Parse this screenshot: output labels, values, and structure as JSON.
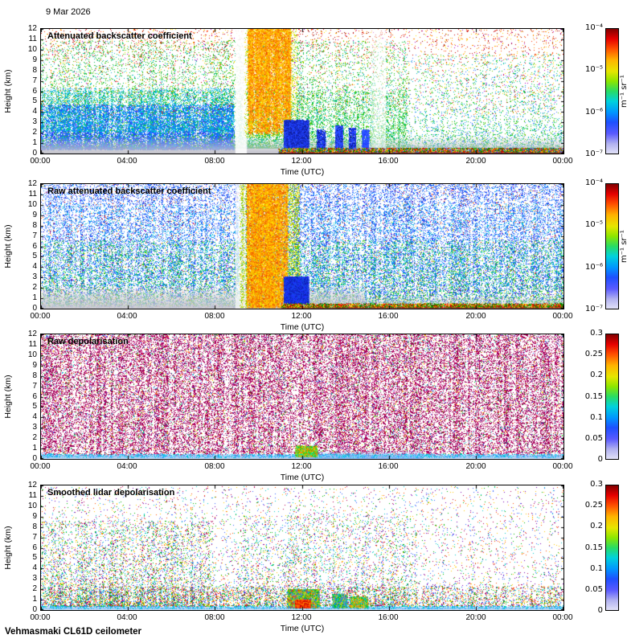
{
  "header": {
    "date": "9 Mar 2026"
  },
  "footer": {
    "station": "Vehmasmaki CL61D ceilometer"
  },
  "chart_data": {
    "type": "heatmap",
    "x_axis": {
      "label": "Time (UTC)",
      "tick_labels": [
        "00:00",
        "04:00",
        "08:00",
        "12:00",
        "16:00",
        "20:00",
        "00:00"
      ],
      "range_hours": [
        0,
        24
      ]
    },
    "y_axis": {
      "label": "Height (km)",
      "ticks": [
        0,
        1,
        2,
        3,
        4,
        5,
        6,
        7,
        8,
        9,
        10,
        11,
        12
      ],
      "range_km": [
        0,
        12
      ]
    },
    "colormap_stops": [
      [
        0,
        "#e1e1f7"
      ],
      [
        0.08,
        "#b0b0f0"
      ],
      [
        0.16,
        "#5a5aff"
      ],
      [
        0.25,
        "#1e50ff"
      ],
      [
        0.33,
        "#0096ff"
      ],
      [
        0.42,
        "#00d2dc"
      ],
      [
        0.5,
        "#28dc64"
      ],
      [
        0.58,
        "#8ce600"
      ],
      [
        0.66,
        "#e6e600"
      ],
      [
        0.75,
        "#ffb400"
      ],
      [
        0.84,
        "#ff5000"
      ],
      [
        0.92,
        "#e60000"
      ],
      [
        1,
        "#820000"
      ]
    ],
    "panels": [
      {
        "title": "Attenuated backscatter coefficient",
        "colorbar": {
          "scale": "log",
          "min": "1e-7",
          "max": "1e-4",
          "tick_labels": [
            "10⁻⁴",
            "10⁻⁵",
            "10⁻⁶",
            "10⁻⁷"
          ],
          "unit": "m⁻¹ sr⁻¹"
        },
        "layers": [
          {
            "k": "sp",
            "x0": 0,
            "x1": 0.7,
            "h0": 0.4,
            "h1": 10.8,
            "c": 14000,
            "s": 1,
            "p": 2.0,
            "cols": [
              "#28b428",
              "#19c819",
              "#00b450",
              "#46c800",
              "#00c89b",
              "#14b4d2",
              "#50c814"
            ]
          },
          {
            "k": "sp",
            "x0": 0,
            "x1": 0.7,
            "h0": 0.4,
            "h1": 6,
            "c": 8000,
            "s": 1,
            "p": 1.4,
            "cols": [
              "#19c819",
              "#00c864",
              "#64c800",
              "#00b4b4"
            ]
          },
          {
            "k": "sp",
            "x0": 0,
            "x1": 0.37,
            "h0": 0.3,
            "h1": 4.6,
            "c": 13000,
            "s": 1,
            "p": 1.6,
            "cols": [
              "#1e3cff",
              "#2850ff",
              "#3c64ff",
              "#0082ff",
              "#4646dc",
              "#00a0ff"
            ]
          },
          {
            "k": "sp",
            "x0": 0,
            "x1": 0.37,
            "h0": 2,
            "h1": 6.2,
            "c": 4200,
            "s": 1,
            "p": 1.3,
            "cols": [
              "#00aadc",
              "#00c8c8",
              "#19b4ff"
            ]
          },
          {
            "k": "sp",
            "x0": 0.7,
            "x1": 1,
            "h0": 0.4,
            "h1": 9.5,
            "c": 4200,
            "s": 1,
            "p": 2.4,
            "cols": [
              "#19c819",
              "#00c878",
              "#64c800",
              "#00b4d2",
              "#3c78ff"
            ]
          },
          {
            "k": "sp",
            "x0": 0,
            "x1": 1,
            "h0": 3.5,
            "h1": 12,
            "c": 2600,
            "s": 1,
            "p": 0.9,
            "cols": [
              "#ff9600",
              "#ffc800",
              "#ff5a00",
              "#d20000",
              "#ffe600",
              "#b400b4"
            ]
          },
          {
            "k": "sp",
            "x0": 0,
            "x1": 1,
            "h0": 9,
            "h1": 12,
            "c": 900,
            "s": 1,
            "p": 0.8,
            "cols": [
              "#c80000",
              "#ff3200",
              "#960000",
              "#ff7800"
            ]
          },
          {
            "k": "vgrad",
            "x0": 0,
            "x1": 1,
            "h0": 0,
            "h1": 1.7,
            "stops": [
              [
                0,
                "rgba(205,205,212,0)"
              ],
              [
                0.5,
                "rgba(200,200,208,0.5)"
              ],
              [
                1,
                "rgba(190,190,200,0.95)"
              ]
            ]
          },
          {
            "k": "fill",
            "x0": 0.372,
            "x1": 0.394,
            "h0": 0,
            "h1": 12,
            "color": "#ffffff",
            "a": 0.88
          },
          {
            "k": "sp",
            "x0": 0.39,
            "x1": 0.49,
            "h0": 1.5,
            "h1": 12,
            "c": 2500,
            "s": 1,
            "p": 1,
            "cols": [
              "#d2dc00",
              "#96d200",
              "#ffe600"
            ]
          },
          {
            "k": "sp",
            "x0": 0.396,
            "x1": 0.478,
            "h0": 1.8,
            "h1": 12,
            "c": 9000,
            "s": 1.2,
            "p": 0.85,
            "cols": [
              "#ff9600",
              "#ffb400",
              "#ffd200",
              "#ff7800",
              "#ffe100",
              "#f05000"
            ]
          },
          {
            "k": "sp",
            "x0": 0.465,
            "x1": 0.512,
            "h0": 0.5,
            "h1": 3.1,
            "c": 7000,
            "s": 1.2,
            "p": 1.1,
            "cols": [
              "#1428c8",
              "#1e3cff",
              "#2850ff",
              "#0f1e96"
            ]
          },
          {
            "k": "sp",
            "x0": 0.528,
            "x1": 0.545,
            "h0": 0.3,
            "h1": 2.2,
            "c": 900,
            "s": 1,
            "p": 1.2,
            "cols": [
              "#1e3cff",
              "#2850ff",
              "#0f1e96"
            ]
          },
          {
            "k": "sp",
            "x0": 0.563,
            "x1": 0.578,
            "h0": 0.3,
            "h1": 2.6,
            "c": 1500,
            "s": 1,
            "p": 1.2,
            "cols": [
              "#1e3cff",
              "#2850ff",
              "#0f1e96",
              "#3c64ff"
            ]
          },
          {
            "k": "sp",
            "x0": 0.59,
            "x1": 0.603,
            "h0": 0.3,
            "h1": 2.4,
            "c": 1300,
            "s": 1,
            "p": 1.2,
            "cols": [
              "#1e3cff",
              "#2850ff",
              "#0f1e96"
            ]
          },
          {
            "k": "sp",
            "x0": 0.615,
            "x1": 0.628,
            "h0": 0.3,
            "h1": 2.2,
            "c": 1100,
            "s": 1,
            "p": 1.2,
            "cols": [
              "#1e3cff",
              "#2850ff",
              "#3c64ff"
            ]
          },
          {
            "k": "fill",
            "x0": 0.632,
            "x1": 0.66,
            "h0": 0.5,
            "h1": 12,
            "color": "#ffffff",
            "a": 0.5
          },
          {
            "k": "sp",
            "x0": 0.455,
            "x1": 1,
            "h0": 0,
            "h1": 0.45,
            "c": 5200,
            "s": 1.1,
            "p": 1.6,
            "cols": [
              "#c80000",
              "#ff3c00",
              "#00b400",
              "#ffd200",
              "#007800",
              "#3264ff"
            ]
          },
          {
            "k": "fill",
            "x0": 0.455,
            "x1": 1,
            "h0": 0,
            "h1": 0.1,
            "color": "#821414",
            "a": 0.7
          }
        ]
      },
      {
        "title": "Raw attenuated backscatter coefficient",
        "colorbar": {
          "scale": "log",
          "min": "1e-7",
          "max": "1e-4",
          "tick_labels": [
            "10⁻⁴",
            "10⁻⁵",
            "10⁻⁶",
            "10⁻⁷"
          ],
          "unit": "m⁻¹ sr⁻¹"
        },
        "layers": [
          {
            "k": "sp",
            "x0": 0,
            "x1": 1,
            "h0": 0,
            "h1": 12,
            "c": 34000,
            "s": 1,
            "p": 1,
            "cols": [
              "#2346ff",
              "#1e5aff",
              "#2d6eff",
              "#4150e6",
              "#0a82ff",
              "#19aaff",
              "#3c3cd2"
            ]
          },
          {
            "k": "sp",
            "x0": 0,
            "x1": 1,
            "h0": 0.2,
            "h1": 6.5,
            "c": 10000,
            "s": 1,
            "p": 1.4,
            "cols": [
              "#00c85a",
              "#23c823",
              "#00b48c",
              "#55c800"
            ]
          },
          {
            "k": "sp",
            "x0": 0,
            "x1": 1,
            "h0": 2,
            "h1": 10,
            "c": 5000,
            "s": 1,
            "p": 1,
            "cols": [
              "#00c8d2",
              "#19b4e6"
            ]
          },
          {
            "k": "sp",
            "x0": 0,
            "x1": 1,
            "h0": 0,
            "h1": 12,
            "c": 2200,
            "s": 1,
            "p": 1,
            "cols": [
              "#ff8c00",
              "#d20000",
              "#ffd200",
              "#b400b4",
              "#ff4600"
            ]
          },
          {
            "k": "vgrad",
            "x0": 0,
            "x1": 0.62,
            "h0": 0,
            "h1": 2.3,
            "stops": [
              [
                0,
                "rgba(205,205,210,0)"
              ],
              [
                0.5,
                "rgba(203,203,208,0.55)"
              ],
              [
                1,
                "rgba(198,198,205,0.92)"
              ]
            ]
          },
          {
            "k": "vgrad",
            "x0": 0.62,
            "x1": 1,
            "h0": 0,
            "h1": 1.3,
            "stops": [
              [
                0,
                "rgba(205,205,210,0)"
              ],
              [
                1,
                "rgba(200,200,206,0.8)"
              ]
            ]
          },
          {
            "k": "fill",
            "x0": 0.372,
            "x1": 0.392,
            "h0": 0,
            "h1": 12,
            "color": "#ffffff",
            "a": 0.7
          },
          {
            "k": "sp",
            "x0": 0.38,
            "x1": 0.495,
            "h0": 0,
            "h1": 12,
            "c": 5000,
            "s": 1,
            "p": 1,
            "cols": [
              "#c8d200",
              "#96d200",
              "#ffe600",
              "#64c800"
            ]
          },
          {
            "k": "sp",
            "x0": 0.394,
            "x1": 0.472,
            "h0": 0,
            "h1": 12,
            "c": 13000,
            "s": 1.25,
            "p": 1,
            "cols": [
              "#ff9600",
              "#ffb400",
              "#ffd200",
              "#ff6e00",
              "#ffe600",
              "#e65000"
            ]
          },
          {
            "k": "sp",
            "x0": 0.465,
            "x1": 0.512,
            "h0": 0.4,
            "h1": 3,
            "c": 6500,
            "s": 1.2,
            "p": 1.1,
            "cols": [
              "#0f1eb4",
              "#1e32ff",
              "#1446e6"
            ]
          },
          {
            "k": "sp",
            "x0": 0.46,
            "x1": 1,
            "h0": 0,
            "h1": 0.4,
            "c": 4200,
            "s": 1.1,
            "p": 1.5,
            "cols": [
              "#c80000",
              "#ff3c00",
              "#00b400",
              "#ffd200",
              "#007800"
            ]
          },
          {
            "k": "fill",
            "x0": 0.46,
            "x1": 1,
            "h0": 0,
            "h1": 0.1,
            "color": "#781414",
            "a": 0.6
          }
        ]
      },
      {
        "title": "Raw depolarisation",
        "colorbar": {
          "scale": "linear",
          "min": 0,
          "max": 0.3,
          "tick_labels": [
            "0.3",
            "0.25",
            "0.2",
            "0.15",
            "0.1",
            "0.05",
            "0"
          ]
        },
        "layers": [
          {
            "k": "sp",
            "x0": 0,
            "x1": 1,
            "h0": 0.12,
            "h1": 12,
            "c": 46000,
            "s": 1,
            "p": 1,
            "cols": [
              "#aa0055",
              "#b4005f",
              "#96004b",
              "#a50069",
              "#8c0050",
              "#c3006e"
            ]
          },
          {
            "k": "sp",
            "x0": 0,
            "x1": 1,
            "h0": 0.12,
            "h1": 12,
            "c": 7000,
            "s": 1,
            "p": 1,
            "cols": [
              "#00b400",
              "#00c8c8",
              "#ffd200",
              "#3264ff",
              "#ff6400"
            ]
          },
          {
            "k": "vgrad",
            "x0": 0,
            "x1": 1,
            "h0": 0,
            "h1": 0.45,
            "stops": [
              [
                0,
                "rgba(150,190,255,0)"
              ],
              [
                0.45,
                "#9fc3f2"
              ],
              [
                1,
                "#cfe0fa"
              ]
            ]
          },
          {
            "k": "vgrad",
            "x0": 0.5,
            "x1": 0.73,
            "h0": 0,
            "h1": 0.8,
            "stops": [
              [
                0,
                "rgba(140,180,240,0)"
              ],
              [
                1,
                "#8cb4f0"
              ]
            ]
          },
          {
            "k": "sp",
            "x0": 0,
            "x1": 1,
            "h0": 0.03,
            "h1": 0.4,
            "c": 2500,
            "s": 1,
            "p": 1,
            "cols": [
              "#00c8dc",
              "#3ca0ff",
              "#78dcff"
            ]
          },
          {
            "k": "sp",
            "x0": 0.487,
            "x1": 0.528,
            "h0": 0.15,
            "h1": 1.15,
            "c": 1400,
            "s": 1.3,
            "p": 1.2,
            "cols": [
              "#00c800",
              "#78d200",
              "#ffd200",
              "#ff7800",
              "#00e6b4"
            ]
          }
        ]
      },
      {
        "title": "Smoothed lidar depolarisation",
        "colorbar": {
          "scale": "linear",
          "min": 0,
          "max": 0.3,
          "tick_labels": [
            "0.3",
            "0.25",
            "0.2",
            "0.15",
            "0.1",
            "0.05",
            "0"
          ]
        },
        "layers": [
          {
            "k": "sp",
            "x0": 0,
            "x1": 1,
            "h0": 0.25,
            "h1": 11.8,
            "c": 6500,
            "s": 1,
            "p": 1.5,
            "cols": [
              "#b40055",
              "#3264ff",
              "#00b400",
              "#ffc800",
              "#ff5000",
              "#00c8c8",
              "#7800b4"
            ]
          },
          {
            "k": "sp",
            "x0": 0,
            "x1": 0.33,
            "h0": 0.25,
            "h1": 8.5,
            "c": 5200,
            "s": 1,
            "p": 1.6,
            "cols": [
              "#3264ff",
              "#00b400",
              "#00c8c8",
              "#b40055",
              "#ffc800"
            ]
          },
          {
            "k": "sp",
            "x0": 0.38,
            "x1": 0.72,
            "h0": 0.3,
            "h1": 9,
            "c": 2600,
            "s": 1,
            "p": 1.4,
            "cols": [
              "#b40055",
              "#3264ff",
              "#00b400",
              "#ffc800",
              "#00c8c8"
            ]
          },
          {
            "k": "sp",
            "x0": 0,
            "x1": 1,
            "h0": 0.25,
            "h1": 2.2,
            "c": 4200,
            "s": 1,
            "p": 1.2,
            "cols": [
              "#3264ff",
              "#00b400",
              "#ffc800",
              "#b40055",
              "#00c8c8",
              "#ff5000"
            ]
          },
          {
            "k": "vgrad",
            "x0": 0,
            "x1": 1,
            "h0": 0,
            "h1": 0.35,
            "stops": [
              [
                0,
                "rgba(160,200,255,0)"
              ],
              [
                0.5,
                "#a5c8f5"
              ],
              [
                1,
                "#d2e6fb"
              ]
            ]
          },
          {
            "k": "sp",
            "x0": 0,
            "x1": 1,
            "h0": 0.02,
            "h1": 0.3,
            "c": 1800,
            "s": 1,
            "p": 1,
            "cols": [
              "#00c8dc",
              "#50b4ff"
            ]
          },
          {
            "k": "sp",
            "x0": 0.472,
            "x1": 0.532,
            "h0": 0.15,
            "h1": 1.9,
            "c": 3000,
            "s": 1.3,
            "p": 1.3,
            "cols": [
              "#ffd200",
              "#00c800",
              "#ff3200",
              "#00c8c8",
              "#3264ff",
              "#96e600"
            ]
          },
          {
            "k": "sp",
            "x0": 0.487,
            "x1": 0.515,
            "h0": 0.15,
            "h1": 0.9,
            "c": 900,
            "s": 1.3,
            "p": 1.2,
            "cols": [
              "#ff3200",
              "#c80000",
              "#ff7800"
            ]
          },
          {
            "k": "sp",
            "x0": 0.558,
            "x1": 0.585,
            "h0": 0.15,
            "h1": 1.4,
            "c": 1300,
            "s": 1.2,
            "p": 1.2,
            "cols": [
              "#00c800",
              "#00c8c8",
              "#ffd200",
              "#3264ff"
            ]
          },
          {
            "k": "sp",
            "x0": 0.592,
            "x1": 0.625,
            "h0": 0.15,
            "h1": 1.2,
            "c": 1000,
            "s": 1.2,
            "p": 1.2,
            "cols": [
              "#00c800",
              "#00c8c8",
              "#ffd200",
              "#ff7800"
            ]
          }
        ]
      }
    ]
  }
}
